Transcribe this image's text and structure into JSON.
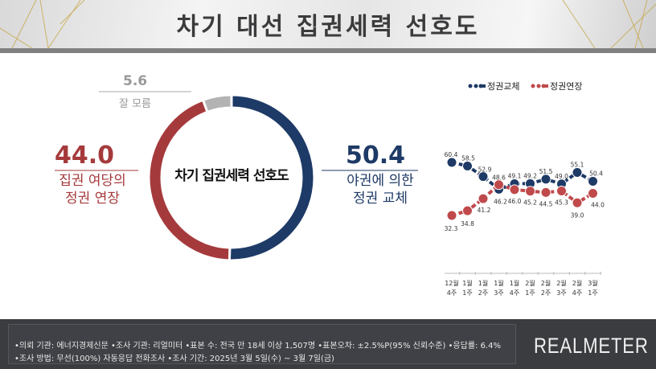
{
  "header": {
    "title": "차기 대선 집권세력 선호도"
  },
  "donut": {
    "center_label": "차기 집권세력 선호도",
    "segments": [
      {
        "key": "change",
        "value": 50.4,
        "value_label": "50.4",
        "label_lines": [
          "야권에 의한",
          "정권 교체"
        ],
        "color": "#1e3a66"
      },
      {
        "key": "extend",
        "value": 44.0,
        "value_label": "44.0",
        "label_lines": [
          "집권 여당의",
          "정권 연장"
        ],
        "color": "#a53a3c"
      },
      {
        "key": "unknown",
        "value": 5.6,
        "value_label": "5.6",
        "label_lines": [
          "잘 모름"
        ],
        "color": "#b3b3b3"
      }
    ]
  },
  "chart_data": {
    "type": "line",
    "categories": [
      "12월 4주",
      "1월 1주",
      "1월 2주",
      "1월 3주",
      "1월 4주",
      "2월 1주",
      "2월 2주",
      "2월 3주",
      "2월 4주",
      "3월 1주"
    ],
    "series": [
      {
        "name": "정권교체",
        "color": "#1e3a66",
        "values": [
          60.4,
          58.5,
          52.9,
          46.2,
          49.1,
          49.2,
          51.5,
          49.0,
          55.1,
          50.4
        ]
      },
      {
        "name": "정권연장",
        "color": "#c0494b",
        "values": [
          32.3,
          34.8,
          41.2,
          48.6,
          46.0,
          45.2,
          44.5,
          45.3,
          39.0,
          44.0
        ]
      }
    ]
  },
  "footer": {
    "line1": "•의뢰 기관: 에너지경제신문 •조사 기관: 리얼미터 •표본 수: 전국 만 18세 이상 1,507명 •표본오차: ±2.5%P(95% 신뢰수준) •응답률: 6.4%",
    "line2": "•조사 방법: 무선(100%) 자동응답 전화조사 •조사 기간: 2025년 3월 5일(수) ~ 3월 7일(금)",
    "logo": "REALMETER"
  }
}
